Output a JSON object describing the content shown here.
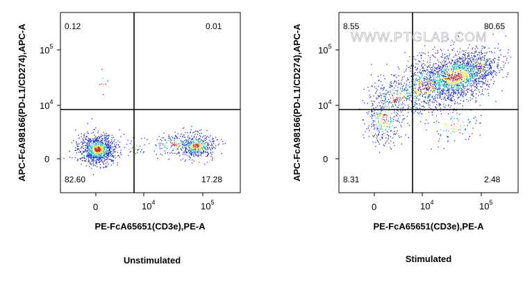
{
  "chart_data": [
    {
      "type": "scatter",
      "caption": "Unstimulated",
      "xlabel": "PE-FcA65651(CD3e),PE-A",
      "ylabel": "APC-FcA98166(PD-L1/CD274),APC-A",
      "x_scale": "logicle",
      "y_scale": "logicle",
      "x_ticks": [
        {
          "base": "0",
          "exp": ""
        },
        {
          "base": "10",
          "exp": "4"
        },
        {
          "base": "10",
          "exp": "5"
        }
      ],
      "y_ticks": [
        {
          "base": "0",
          "exp": ""
        },
        {
          "base": "10",
          "exp": "4"
        },
        {
          "base": "10",
          "exp": "5"
        }
      ],
      "quadrants": {
        "upper_left": "0.12",
        "upper_right": "0.01",
        "lower_left": "82.60",
        "lower_right": "17.28"
      },
      "grid": false,
      "legend": "none"
    },
    {
      "type": "scatter",
      "caption": "Stimulated",
      "xlabel": "PE-FcA65651(CD3e),PE-A",
      "ylabel": "APC-FcA98166(PD-L1/CD274),APC-A",
      "x_scale": "logicle",
      "y_scale": "logicle",
      "x_ticks": [
        {
          "base": "0",
          "exp": ""
        },
        {
          "base": "10",
          "exp": "4"
        },
        {
          "base": "10",
          "exp": "5"
        }
      ],
      "y_ticks": [
        {
          "base": "0",
          "exp": ""
        },
        {
          "base": "10",
          "exp": "4"
        },
        {
          "base": "10",
          "exp": "5"
        }
      ],
      "quadrants": {
        "upper_left": "8.55",
        "upper_right": "80.65",
        "lower_left": "8.31",
        "lower_right": "2.48"
      },
      "watermark": "WWW.PTGLAB.COM",
      "grid": false,
      "legend": "none"
    }
  ],
  "colors": {
    "density_low": "#1f2fd6",
    "density_mid": "#20c0c0",
    "density_high": "#f0e020",
    "density_peak": "#e02020"
  }
}
